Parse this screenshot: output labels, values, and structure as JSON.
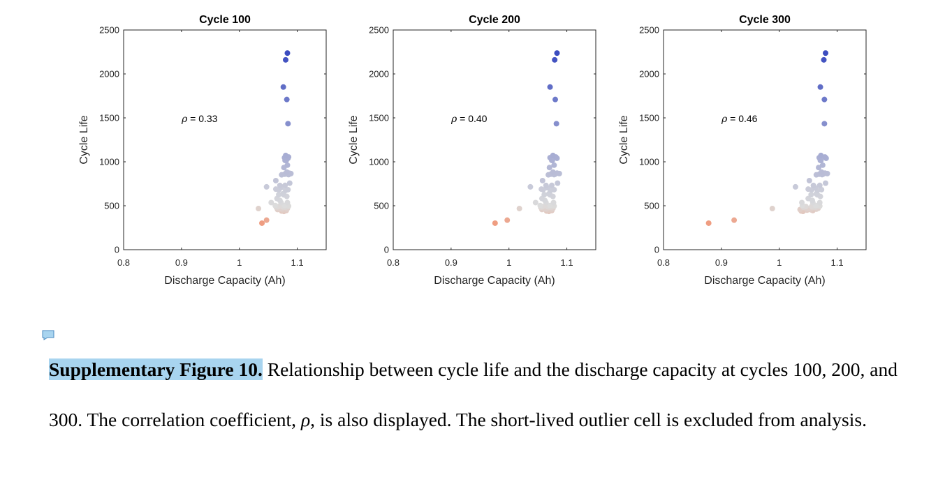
{
  "chart_data": [
    {
      "type": "scatter",
      "title": "Cycle 100",
      "xlabel": "Discharge Capacity (Ah)",
      "ylabel": "Cycle Life",
      "xlim": [
        0.8,
        1.15
      ],
      "ylim": [
        0,
        2500
      ],
      "xticks": [
        "0.8",
        "0.9",
        "1",
        "1.1"
      ],
      "yticks": [
        "0",
        "500",
        "1000",
        "1500",
        "2000",
        "2500"
      ],
      "annotation": {
        "symbol": "ρ",
        "text": " = 0.33"
      },
      "x": [
        1.083,
        1.08,
        1.076,
        1.082,
        1.084,
        1.08,
        1.085,
        1.078,
        1.084,
        1.081,
        1.079,
        1.083,
        1.077,
        1.082,
        1.086,
        1.089,
        1.081,
        1.085,
        1.078,
        1.073,
        1.085,
        1.087,
        1.063,
        1.07,
        1.079,
        1.047,
        1.072,
        1.063,
        1.068,
        1.084,
        1.08,
        1.075,
        1.068,
        1.077,
        1.082,
        1.065,
        1.07,
        1.055,
        1.072,
        1.083,
        1.062,
        1.078,
        1.085,
        1.074,
        1.067,
        1.079,
        1.08,
        1.064,
        1.076,
        1.071,
        1.083,
        1.069,
        1.074,
        1.082,
        1.066,
        1.078,
        1.075,
        1.081,
        1.073,
        1.077,
        1.033,
        1.047,
        1.039
      ],
      "y": [
        2237,
        2160,
        1851,
        1709,
        1434,
        1072,
        1055,
        1047,
        1040,
        1017,
        1016,
        962,
        935,
        883,
        871,
        866,
        863,
        861,
        859,
        852,
        854,
        757,
        786,
        731,
        732,
        715,
        705,
        689,
        682,
        683,
        675,
        636,
        626,
        624,
        606,
        582,
        561,
        536,
        536,
        536,
        502,
        502,
        496,
        492,
        491,
        484,
        485,
        481,
        481,
        469,
        470,
        463,
        462,
        461,
        457,
        453,
        450,
        445,
        440,
        436,
        468,
        336,
        302
      ]
    },
    {
      "type": "scatter",
      "title": "Cycle 200",
      "xlabel": "Discharge Capacity (Ah)",
      "ylabel": "Cycle Life",
      "xlim": [
        0.8,
        1.15
      ],
      "ylim": [
        0,
        2500
      ],
      "xticks": [
        "0.8",
        "0.9",
        "1",
        "1.1"
      ],
      "yticks": [
        "0",
        "500",
        "1000",
        "1500",
        "2000",
        "2500"
      ],
      "annotation": {
        "symbol": "ρ",
        "text": " = 0.40"
      },
      "x": [
        1.083,
        1.079,
        1.071,
        1.08,
        1.082,
        1.076,
        1.081,
        1.071,
        1.083,
        1.075,
        1.074,
        1.078,
        1.07,
        1.076,
        1.083,
        1.087,
        1.075,
        1.08,
        1.072,
        1.068,
        1.078,
        1.084,
        1.058,
        1.064,
        1.074,
        1.037,
        1.066,
        1.056,
        1.059,
        1.078,
        1.072,
        1.069,
        1.061,
        1.071,
        1.076,
        1.057,
        1.062,
        1.046,
        1.064,
        1.077,
        1.054,
        1.071,
        1.078,
        1.066,
        1.058,
        1.072,
        1.073,
        1.055,
        1.069,
        1.063,
        1.076,
        1.061,
        1.065,
        1.074,
        1.057,
        1.071,
        1.067,
        1.074,
        1.065,
        1.069,
        1.018,
        0.997,
        0.976
      ],
      "y": [
        2237,
        2160,
        1851,
        1709,
        1434,
        1072,
        1055,
        1047,
        1040,
        1017,
        1016,
        962,
        935,
        883,
        871,
        866,
        863,
        861,
        859,
        852,
        854,
        757,
        786,
        731,
        732,
        715,
        705,
        689,
        682,
        683,
        675,
        636,
        626,
        624,
        606,
        582,
        561,
        536,
        536,
        536,
        502,
        502,
        496,
        492,
        491,
        484,
        485,
        481,
        481,
        469,
        470,
        463,
        462,
        461,
        457,
        453,
        450,
        445,
        440,
        436,
        468,
        336,
        302
      ]
    },
    {
      "type": "scatter",
      "title": "Cycle 300",
      "xlabel": "Discharge Capacity (Ah)",
      "ylabel": "Cycle Life",
      "xlim": [
        0.8,
        1.15
      ],
      "ylim": [
        0,
        2500
      ],
      "xticks": [
        "0.8",
        "0.9",
        "1",
        "1.1"
      ],
      "yticks": [
        "0",
        "500",
        "1000",
        "1500",
        "2000",
        "2500"
      ],
      "annotation": {
        "symbol": "ρ",
        "text": " = 0.46"
      },
      "x": [
        1.08,
        1.077,
        1.071,
        1.078,
        1.078,
        1.072,
        1.079,
        1.069,
        1.081,
        1.072,
        1.071,
        1.075,
        1.068,
        1.073,
        1.079,
        1.083,
        1.071,
        1.076,
        1.069,
        1.064,
        1.074,
        1.08,
        1.052,
        1.059,
        1.07,
        1.028,
        1.062,
        1.05,
        1.056,
        1.073,
        1.066,
        1.064,
        1.055,
        1.066,
        1.071,
        1.05,
        1.057,
        1.039,
        1.058,
        1.07,
        1.04,
        1.063,
        1.07,
        1.056,
        1.046,
        1.062,
        1.064,
        1.042,
        1.058,
        1.05,
        1.067,
        1.047,
        1.054,
        1.064,
        1.036,
        1.055,
        1.048,
        1.058,
        1.038,
        1.041,
        0.988,
        0.922,
        0.878
      ],
      "y": [
        2237,
        2160,
        1851,
        1709,
        1434,
        1072,
        1055,
        1047,
        1040,
        1017,
        1016,
        962,
        935,
        883,
        871,
        866,
        863,
        861,
        859,
        852,
        854,
        757,
        786,
        731,
        732,
        715,
        705,
        689,
        682,
        683,
        675,
        636,
        626,
        624,
        606,
        582,
        561,
        536,
        536,
        536,
        502,
        502,
        496,
        492,
        491,
        484,
        485,
        481,
        481,
        469,
        470,
        463,
        462,
        461,
        457,
        453,
        450,
        445,
        440,
        436,
        468,
        336,
        302
      ]
    }
  ],
  "colors": {
    "low": "#ef9c80",
    "mid": "#dcdcdc",
    "high": "#3b4cc0"
  },
  "caption": {
    "label": "Supplementary Figure 10.",
    "text_1": " Relationship between cycle life and the discharge capacity at cycles 100, 200, and 300. The correlation coefficient, ",
    "symbol": "ρ",
    "text_2": ", is also displayed. The short-lived outlier cell is excluded from analysis."
  }
}
